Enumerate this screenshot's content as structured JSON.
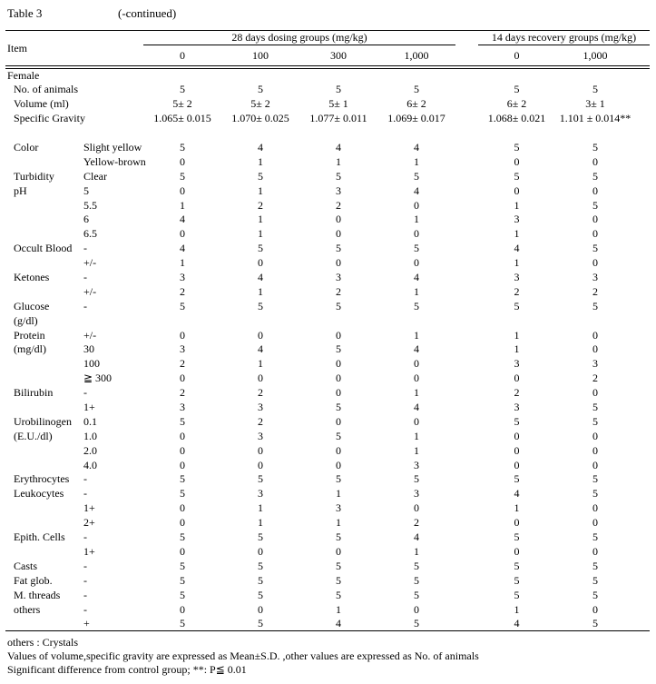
{
  "colors": {
    "text": "#000000",
    "background": "#ffffff"
  },
  "title": {
    "table_label": "Table 3",
    "continued": "(-continued)"
  },
  "header": {
    "item_label": "Item",
    "groups": [
      {
        "label": "28 days dosing groups (mg/kg)",
        "doses": [
          "0",
          "100",
          "300",
          "1,000"
        ]
      },
      {
        "label": "14 days recovery groups (mg/kg)",
        "doses": [
          "0",
          "1,000"
        ]
      }
    ]
  },
  "rows": [
    {
      "type": "section",
      "label": "Female"
    },
    {
      "type": "data",
      "label": "No. of animals",
      "sub": "",
      "values": [
        "5",
        "5",
        "5",
        "5",
        "5",
        "5"
      ]
    },
    {
      "type": "data",
      "label": "Volume (ml)",
      "sub": "",
      "values": [
        "5± 2",
        "5± 2",
        "5± 1",
        "6± 2",
        "6± 2",
        "3± 1"
      ]
    },
    {
      "type": "data",
      "label": "Specific Gravity",
      "sub": "",
      "values": [
        "1.065± 0.015",
        "1.070± 0.025",
        "1.077± 0.011",
        "1.069± 0.017",
        "1.068± 0.021",
        "1.101 ± 0.014**"
      ]
    },
    {
      "type": "blank"
    },
    {
      "type": "data",
      "label": "Color",
      "sub": "Slight yellow",
      "values": [
        "5",
        "4",
        "4",
        "4",
        "5",
        "5"
      ]
    },
    {
      "type": "data",
      "label": "",
      "sub": "Yellow-brown",
      "values": [
        "0",
        "1",
        "1",
        "1",
        "0",
        "0"
      ]
    },
    {
      "type": "data",
      "label": "Turbidity",
      "sub": "Clear",
      "values": [
        "5",
        "5",
        "5",
        "5",
        "5",
        "5"
      ]
    },
    {
      "type": "data",
      "label": "pH",
      "sub": "5",
      "values": [
        "0",
        "1",
        "3",
        "4",
        "0",
        "0"
      ]
    },
    {
      "type": "data",
      "label": "",
      "sub": "5.5",
      "values": [
        "1",
        "2",
        "2",
        "0",
        "1",
        "5"
      ]
    },
    {
      "type": "data",
      "label": "",
      "sub": "6",
      "values": [
        "4",
        "1",
        "0",
        "1",
        "3",
        "0"
      ]
    },
    {
      "type": "data",
      "label": "",
      "sub": "6.5",
      "values": [
        "0",
        "1",
        "0",
        "0",
        "1",
        "0"
      ]
    },
    {
      "type": "data",
      "label": "Occult Blood",
      "sub": "-",
      "values": [
        "4",
        "5",
        "5",
        "5",
        "4",
        "5"
      ]
    },
    {
      "type": "data",
      "label": "",
      "sub": "+/-",
      "values": [
        "1",
        "0",
        "0",
        "0",
        "1",
        "0"
      ]
    },
    {
      "type": "data",
      "label": "Ketones",
      "sub": "-",
      "values": [
        "3",
        "4",
        "3",
        "4",
        "3",
        "3"
      ]
    },
    {
      "type": "data",
      "label": "",
      "sub": "+/-",
      "values": [
        "2",
        "1",
        "2",
        "1",
        "2",
        "2"
      ]
    },
    {
      "type": "data",
      "label": "Glucose",
      "sub": "-",
      "values": [
        "5",
        "5",
        "5",
        "5",
        "5",
        "5"
      ]
    },
    {
      "type": "data",
      "label": "(g/dl)",
      "sub": "",
      "values": [
        "",
        "",
        "",
        "",
        "",
        ""
      ]
    },
    {
      "type": "data",
      "label": "Protein",
      "sub": "+/-",
      "values": [
        "0",
        "0",
        "0",
        "1",
        "1",
        "0"
      ]
    },
    {
      "type": "data",
      "label": "(mg/dl)",
      "sub": "30",
      "values": [
        "3",
        "4",
        "5",
        "4",
        "1",
        "0"
      ]
    },
    {
      "type": "data",
      "label": "",
      "sub": "100",
      "values": [
        "2",
        "1",
        "0",
        "0",
        "3",
        "3"
      ]
    },
    {
      "type": "data",
      "label": "",
      "sub": "≧ 300",
      "values": [
        "0",
        "0",
        "0",
        "0",
        "0",
        "2"
      ]
    },
    {
      "type": "data",
      "label": "Bilirubin",
      "sub": "-",
      "values": [
        "2",
        "2",
        "0",
        "1",
        "2",
        "0"
      ]
    },
    {
      "type": "data",
      "label": "",
      "sub": "1+",
      "values": [
        "3",
        "3",
        "5",
        "4",
        "3",
        "5"
      ]
    },
    {
      "type": "data",
      "label": "Urobilinogen",
      "sub": "0.1",
      "values": [
        "5",
        "2",
        "0",
        "0",
        "5",
        "5"
      ]
    },
    {
      "type": "data",
      "label": "(E.U./dl)",
      "sub": "1.0",
      "values": [
        "0",
        "3",
        "5",
        "1",
        "0",
        "0"
      ]
    },
    {
      "type": "data",
      "label": "",
      "sub": "2.0",
      "values": [
        "0",
        "0",
        "0",
        "1",
        "0",
        "0"
      ]
    },
    {
      "type": "data",
      "label": "",
      "sub": "4.0",
      "values": [
        "0",
        "0",
        "0",
        "3",
        "0",
        "0"
      ]
    },
    {
      "type": "data",
      "label": "Erythrocytes",
      "sub": "-",
      "values": [
        "5",
        "5",
        "5",
        "5",
        "5",
        "5"
      ]
    },
    {
      "type": "data",
      "label": "Leukocytes",
      "sub": "-",
      "values": [
        "5",
        "3",
        "1",
        "3",
        "4",
        "5"
      ]
    },
    {
      "type": "data",
      "label": "",
      "sub": "1+",
      "values": [
        "0",
        "1",
        "3",
        "0",
        "1",
        "0"
      ]
    },
    {
      "type": "data",
      "label": "",
      "sub": "2+",
      "values": [
        "0",
        "1",
        "1",
        "2",
        "0",
        "0"
      ]
    },
    {
      "type": "data",
      "label": "Epith. Cells",
      "sub": "-",
      "values": [
        "5",
        "5",
        "5",
        "4",
        "5",
        "5"
      ]
    },
    {
      "type": "data",
      "label": "",
      "sub": "1+",
      "values": [
        "0",
        "0",
        "0",
        "1",
        "0",
        "0"
      ]
    },
    {
      "type": "data",
      "label": "Casts",
      "sub": "-",
      "values": [
        "5",
        "5",
        "5",
        "5",
        "5",
        "5"
      ]
    },
    {
      "type": "data",
      "label": "Fat glob.",
      "sub": "-",
      "values": [
        "5",
        "5",
        "5",
        "5",
        "5",
        "5"
      ]
    },
    {
      "type": "data",
      "label": "M. threads",
      "sub": "-",
      "values": [
        "5",
        "5",
        "5",
        "5",
        "5",
        "5"
      ]
    },
    {
      "type": "data",
      "label": "others",
      "sub": "-",
      "values": [
        "0",
        "0",
        "1",
        "0",
        "1",
        "0"
      ]
    },
    {
      "type": "data",
      "label": "",
      "sub": "+",
      "values": [
        "5",
        "5",
        "4",
        "5",
        "4",
        "5"
      ]
    }
  ],
  "footnotes": [
    "others : Crystals",
    "Values of volume,specific gravity are expressed as Mean±S.D. ,other values are expressed as No. of animals",
    "Significant difference from control group;  **: P≦ 0.01"
  ]
}
